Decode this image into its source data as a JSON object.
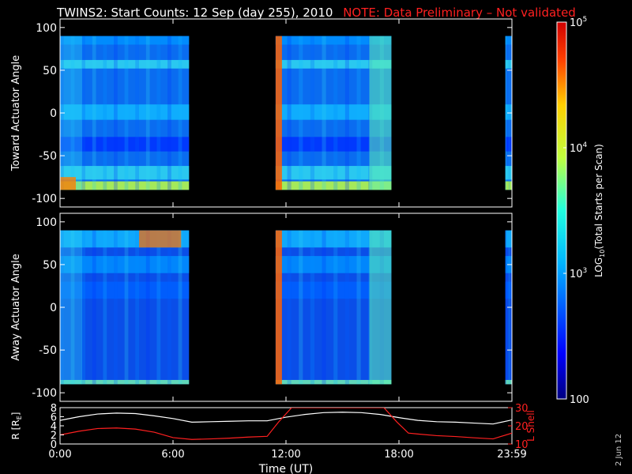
{
  "header": {
    "title": "TWINS2: Start Counts: 12 Sep (day 255), 2010",
    "note": "NOTE: Data Preliminary – Not validated",
    "note_color": "#ff2020"
  },
  "stamp": "2 Jun 12",
  "chart_data": [
    {
      "type": "heatmap",
      "ylabel": "Toward Actuator Angle",
      "ylim": [
        -110,
        110
      ],
      "y_ticks": [
        -100,
        -50,
        0,
        50,
        100
      ],
      "data_range": {
        "angle": [
          -90,
          90
        ]
      },
      "data_segments_hours": [
        [
          0.0,
          6.85
        ],
        [
          11.45,
          17.6
        ],
        [
          23.65,
          24.0
        ]
      ],
      "colormap": "jet",
      "colorbar_ref": "shared"
    },
    {
      "type": "heatmap",
      "ylabel": "Away Actuator Angle",
      "ylim": [
        -110,
        110
      ],
      "y_ticks": [
        -100,
        -50,
        0,
        50,
        100
      ],
      "data_range": {
        "angle": [
          -90,
          90
        ]
      },
      "data_segments_hours": [
        [
          0.0,
          6.85
        ],
        [
          11.45,
          17.6
        ],
        [
          23.65,
          24.0
        ]
      ],
      "colormap": "jet",
      "colorbar_ref": "shared"
    },
    {
      "type": "line",
      "ylabel_left": "R [R",
      "ylabel_left_sub": "E",
      "ylabel_left_close": "]",
      "ylabel_right": "L Shell",
      "ylim_left": [
        0,
        8
      ],
      "yticks_left": [
        0,
        2,
        4,
        6,
        8
      ],
      "ylim_right": [
        10,
        30
      ],
      "yticks_right": [
        10,
        20,
        30
      ],
      "series": [
        {
          "color": "#ffffff",
          "x": [
            0,
            1,
            2,
            3,
            4,
            5,
            6,
            7,
            8,
            9,
            10,
            11,
            12,
            13,
            14,
            15,
            16,
            17,
            18,
            19,
            20,
            21,
            22,
            23,
            24
          ],
          "values": [
            5.2,
            6.0,
            6.6,
            6.8,
            6.7,
            6.2,
            5.6,
            4.8,
            4.9,
            5.0,
            5.1,
            5.1,
            5.9,
            6.5,
            6.9,
            7.0,
            6.9,
            6.5,
            5.8,
            5.2,
            4.9,
            4.8,
            4.6,
            4.4,
            5.3
          ]
        }
      ],
      "series_right": [
        {
          "color": "#ff2020",
          "x": [
            0,
            1,
            2,
            3,
            4,
            5,
            6,
            7,
            8,
            9,
            10,
            11,
            11.6,
            12.3,
            17.2,
            17.9,
            18.5,
            19,
            20,
            21,
            22,
            23,
            24
          ],
          "values": [
            15,
            17,
            18.5,
            18.8,
            18.2,
            16.5,
            13.5,
            12.5,
            12.8,
            13.2,
            13.8,
            14.2,
            22,
            30,
            30,
            22,
            16,
            15.5,
            14.6,
            14.1,
            13.4,
            12.8,
            16
          ]
        }
      ]
    }
  ],
  "time_axis": {
    "xlabel": "Time (UT)",
    "xlim_hours": [
      0,
      24
    ],
    "ticks": [
      {
        "hour": 0,
        "label": "0:00"
      },
      {
        "hour": 6,
        "label": "6:00"
      },
      {
        "hour": 12,
        "label": "12:00"
      },
      {
        "hour": 18,
        "label": "18:00"
      },
      {
        "hour": 24,
        "label": "23:59"
      }
    ]
  },
  "colorbar": {
    "label_main": "LOG",
    "label_sub": "10",
    "label_rest": "(Total Starts per Scan)",
    "scale": "log",
    "range": [
      100,
      100000
    ],
    "ticks": [
      {
        "value": 100,
        "label": "100"
      },
      {
        "value": 1000,
        "label": "10",
        "exp": "3"
      },
      {
        "value": 10000,
        "label": "10",
        "exp": "4"
      },
      {
        "value": 100000,
        "label": "10",
        "exp": "5"
      }
    ]
  }
}
